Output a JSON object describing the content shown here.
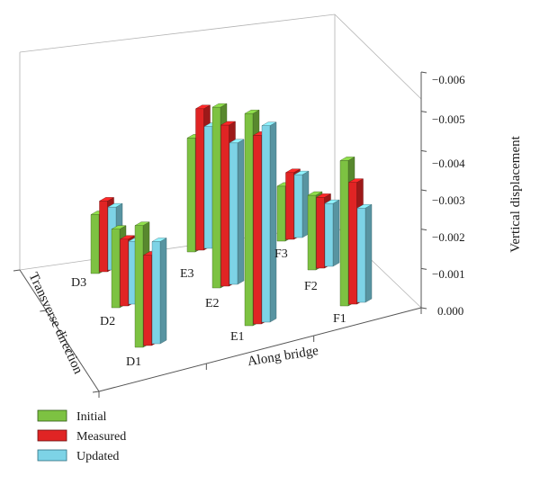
{
  "chart_data": {
    "type": "bar3d",
    "title": "",
    "xlabel": "Along bridge",
    "ylabel": "Transverse direction",
    "zlabel": "Vertical displacement",
    "zlim": [
      0,
      -0.006
    ],
    "z_ticks": [
      "0.000",
      "−0.001",
      "−0.002",
      "−0.003",
      "−0.004",
      "−0.005",
      "−0.006"
    ],
    "legend_position": "bottom-left",
    "series": [
      {
        "name": "Initial",
        "color": "#7dc242"
      },
      {
        "name": "Measured",
        "color": "#e02424"
      },
      {
        "name": "Updated",
        "color": "#7dd3e6"
      }
    ],
    "categories": [
      {
        "label": "D3",
        "values": [
          -0.0015,
          -0.0018,
          -0.0016
        ]
      },
      {
        "label": "D2",
        "values": [
          -0.002,
          -0.0017,
          -0.0016
        ]
      },
      {
        "label": "D1",
        "values": [
          -0.0031,
          -0.0023,
          -0.0026
        ]
      },
      {
        "label": "E3",
        "values": [
          -0.0029,
          -0.0036,
          -0.0031
        ]
      },
      {
        "label": "E2",
        "values": [
          -0.0046,
          -0.0041,
          -0.0036
        ]
      },
      {
        "label": "E1",
        "values": [
          -0.0054,
          -0.0048,
          -0.005
        ]
      },
      {
        "label": "F3",
        "values": [
          -0.0014,
          -0.0017,
          -0.0016
        ]
      },
      {
        "label": "F2",
        "values": [
          -0.0019,
          -0.0018,
          -0.0016
        ]
      },
      {
        "label": "F1",
        "values": [
          -0.0037,
          -0.0031,
          -0.0024
        ]
      }
    ]
  }
}
